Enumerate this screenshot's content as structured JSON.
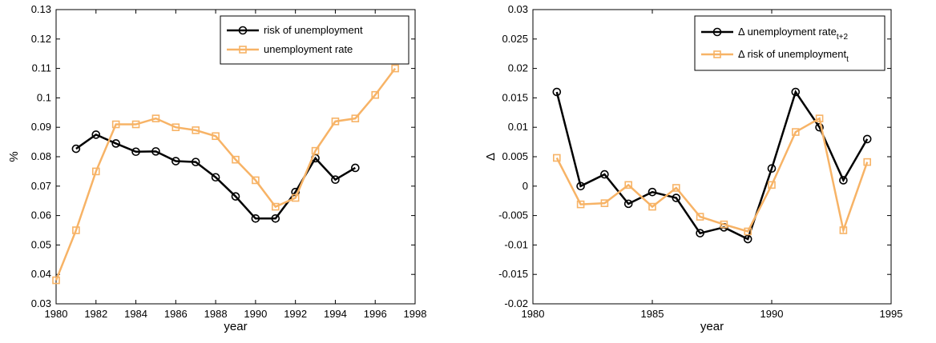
{
  "chart_data": [
    {
      "type": "line",
      "xlabel": "year",
      "ylabel": "%",
      "xlim": [
        1980,
        1998
      ],
      "xticks": [
        1980,
        1982,
        1984,
        1986,
        1988,
        1990,
        1992,
        1994,
        1996,
        1998
      ],
      "ylim": [
        0.03,
        0.13
      ],
      "yticks": [
        0.03,
        0.04,
        0.05,
        0.06,
        0.07,
        0.08,
        0.09,
        0.1,
        0.11,
        0.12,
        0.13
      ],
      "legend": "upper right",
      "series": [
        {
          "name": "risk of unemployment",
          "color": "#000000",
          "marker": "circle",
          "x": [
            1981,
            1982,
            1983,
            1984,
            1985,
            1986,
            1987,
            1988,
            1989,
            1990,
            1991,
            1992,
            1993,
            1994,
            1995
          ],
          "values": [
            0.0827,
            0.0875,
            0.0845,
            0.0817,
            0.0818,
            0.0785,
            0.0782,
            0.073,
            0.0665,
            0.059,
            0.059,
            0.068,
            0.0795,
            0.0722,
            0.0762
          ]
        },
        {
          "name": "unemployment rate",
          "color": "#f7b366",
          "marker": "square",
          "x": [
            1980,
            1981,
            1982,
            1983,
            1984,
            1985,
            1986,
            1987,
            1988,
            1989,
            1990,
            1991,
            1992,
            1993,
            1994,
            1995,
            1996,
            1997
          ],
          "values": [
            0.038,
            0.055,
            0.075,
            0.091,
            0.091,
            0.093,
            0.09,
            0.089,
            0.087,
            0.079,
            0.072,
            0.063,
            0.066,
            0.082,
            0.092,
            0.093,
            0.101,
            0.11
          ]
        }
      ]
    },
    {
      "type": "line",
      "xlabel": "year",
      "ylabel": "Δ",
      "xlim": [
        1980,
        1995
      ],
      "xticks": [
        1980,
        1985,
        1990,
        1995
      ],
      "ylim": [
        -0.02,
        0.03
      ],
      "yticks": [
        -0.02,
        -0.015,
        -0.01,
        -0.005,
        0,
        0.005,
        0.01,
        0.015,
        0.02,
        0.025,
        0.03
      ],
      "legend": "upper right",
      "series": [
        {
          "name": "Δ unemployment rate",
          "subscript": "t+2",
          "color": "#000000",
          "marker": "circle",
          "x": [
            1981,
            1982,
            1983,
            1984,
            1985,
            1986,
            1987,
            1988,
            1989,
            1990,
            1991,
            1992,
            1993,
            1994
          ],
          "values": [
            0.016,
            0,
            0.002,
            -0.003,
            -0.001,
            -0.002,
            -0.008,
            -0.007,
            -0.009,
            0.003,
            0.016,
            0.01,
            0.001,
            0.008
          ]
        },
        {
          "name": "Δ risk of unemployment",
          "subscript": "t",
          "color": "#f7b366",
          "marker": "square",
          "x": [
            1981,
            1982,
            1983,
            1984,
            1985,
            1986,
            1987,
            1988,
            1989,
            1990,
            1991,
            1992,
            1993,
            1994
          ],
          "values": [
            0.0048,
            -0.0031,
            -0.0029,
            0.0002,
            -0.0035,
            -0.0003,
            -0.0052,
            -0.0065,
            -0.0077,
            0.0002,
            0.0092,
            0.0115,
            -0.0075,
            0.0041
          ]
        }
      ]
    }
  ]
}
